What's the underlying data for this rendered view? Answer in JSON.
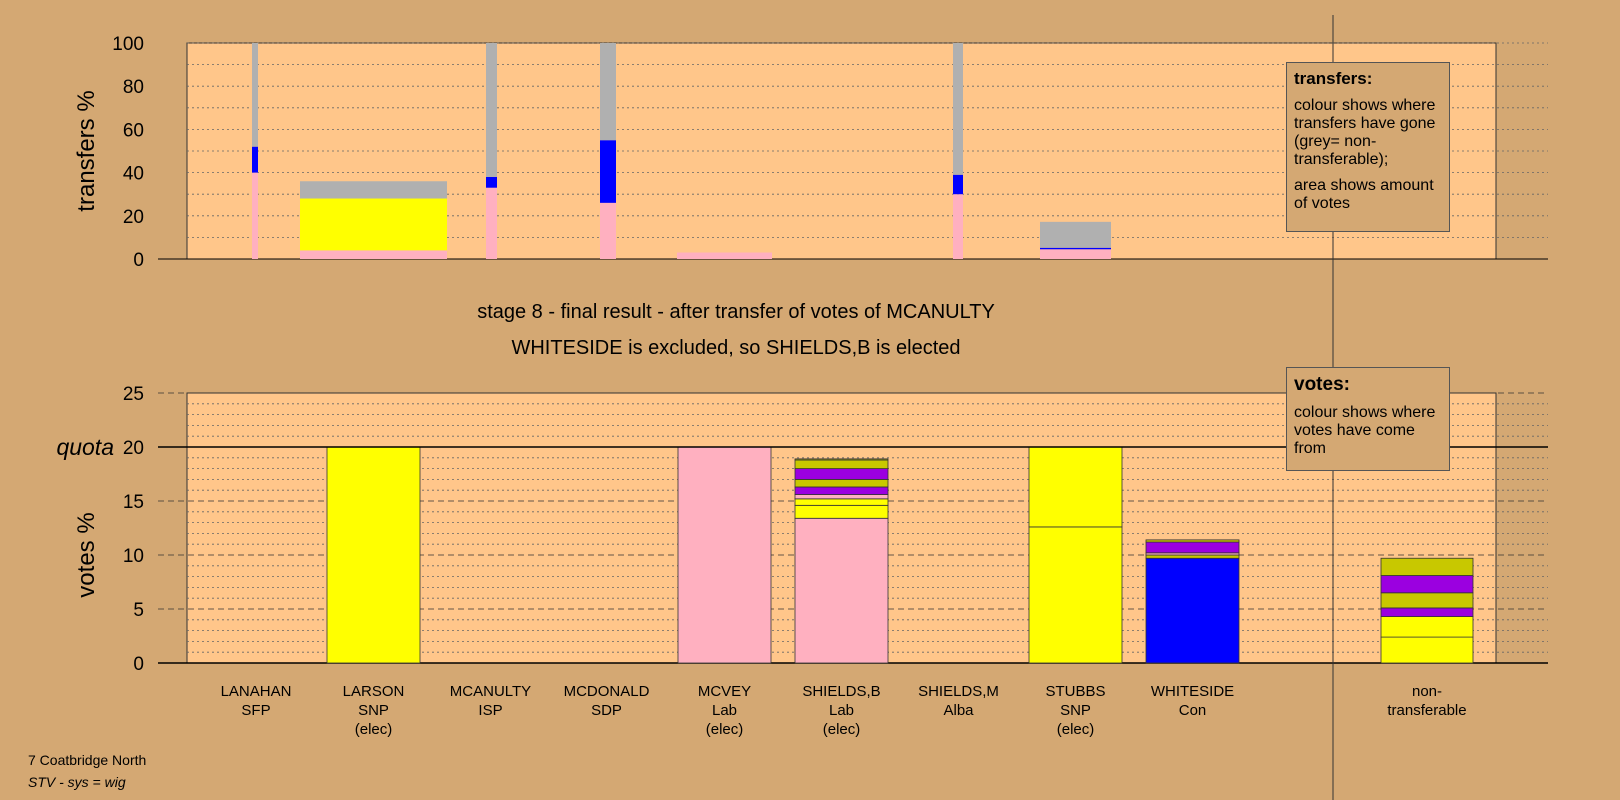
{
  "footer": {
    "constituency": "7 Coatbridge North",
    "system": "STV - sys = wig"
  },
  "chart_data": [
    {
      "type": "bar",
      "stacked": true,
      "ylabel": "transfers %",
      "ylim": [
        0,
        100
      ],
      "yticks": [
        0,
        20,
        40,
        60,
        80,
        100
      ],
      "grid": "dotted",
      "legend": {
        "placement": "top-right",
        "title": "transfers:",
        "lines": [
          "colour shows where transfers have gone (grey= non-transferable);",
          "area shows amount of votes"
        ]
      },
      "series_colors": {
        "pink": "#FFB0C0",
        "yellow": "#FFFF00",
        "blue": "#0000FF",
        "grey": "#B0B0B0"
      },
      "bars": [
        {
          "candidate": "LANAHAN",
          "segments": [
            {
              "color": "pink",
              "value": 40
            },
            {
              "color": "blue",
              "value": 12
            },
            {
              "color": "grey",
              "value": 48
            }
          ]
        },
        {
          "candidate": "LARSON",
          "segments": [
            {
              "color": "pink",
              "value": 4
            },
            {
              "color": "yellow",
              "value": 24
            },
            {
              "color": "grey",
              "value": 8
            }
          ]
        },
        {
          "candidate": "MCANULTY",
          "segments": [
            {
              "color": "pink",
              "value": 33
            },
            {
              "color": "blue",
              "value": 5
            },
            {
              "color": "grey",
              "value": 62
            }
          ]
        },
        {
          "candidate": "MCDONALD",
          "segments": [
            {
              "color": "pink",
              "value": 26
            },
            {
              "color": "blue",
              "value": 29
            },
            {
              "color": "grey",
              "value": 45
            }
          ]
        },
        {
          "candidate": "MCVEY",
          "segments": [
            {
              "color": "pink",
              "value": 3
            }
          ]
        },
        {
          "candidate": "SHIELDS,M",
          "segments": [
            {
              "color": "pink",
              "value": 30
            },
            {
              "color": "blue",
              "value": 9
            },
            {
              "color": "grey",
              "value": 61
            }
          ]
        },
        {
          "candidate": "STUBBS",
          "segments": [
            {
              "color": "pink",
              "value": 4.5
            },
            {
              "color": "blue",
              "value": 0.7
            },
            {
              "color": "grey",
              "value": 12
            }
          ]
        }
      ]
    },
    {
      "type": "bar",
      "stacked": true,
      "title": "stage 8 - final result - after transfer of votes of MCANULTY",
      "subtitle": "WHITESIDE is excluded, so SHIELDS,B is elected",
      "ylabel": "votes %",
      "ylim": [
        0,
        25
      ],
      "yticks": [
        0,
        5,
        10,
        15,
        20,
        25
      ],
      "quota": 20,
      "quota_label": "quota",
      "grid": "dashed",
      "legend": {
        "placement": "top-right",
        "title": "votes:",
        "lines": [
          "colour shows where votes have come from"
        ]
      },
      "series_colors": {
        "pink": "#FFB0C0",
        "yellow": "#FFFF00",
        "blue": "#0000FF",
        "purple": "#9B00E0",
        "olive": "#C8C800"
      },
      "bars": [
        {
          "candidate": "LANAHAN",
          "party": "SFP",
          "status": "",
          "segments": []
        },
        {
          "candidate": "LARSON",
          "party": "SNP",
          "status": "(elec)",
          "segments": [
            {
              "color": "yellow",
              "value": 20
            }
          ]
        },
        {
          "candidate": "MCANULTY",
          "party": "ISP",
          "status": "",
          "segments": []
        },
        {
          "candidate": "MCDONALD",
          "party": "SDP",
          "status": "",
          "segments": []
        },
        {
          "candidate": "MCVEY",
          "party": "Lab",
          "status": "(elec)",
          "segments": [
            {
              "color": "pink",
              "value": 20
            }
          ]
        },
        {
          "candidate": "SHIELDS,B",
          "party": "Lab",
          "status": "(elec)",
          "segments": [
            {
              "color": "pink",
              "value": 13.4
            },
            {
              "color": "yellow",
              "value": 1.2
            },
            {
              "color": "yellow",
              "value": 0.6
            },
            {
              "color": "pink",
              "value": 0.4
            },
            {
              "color": "purple",
              "value": 0.7
            },
            {
              "color": "olive",
              "value": 0.7
            },
            {
              "color": "purple",
              "value": 1.0
            },
            {
              "color": "olive",
              "value": 0.8
            },
            {
              "color": "olive",
              "value": 0.1
            }
          ]
        },
        {
          "candidate": "SHIELDS,M",
          "party": "Alba",
          "status": "",
          "segments": []
        },
        {
          "candidate": "STUBBS",
          "party": "SNP",
          "status": "(elec)",
          "segments": [
            {
              "color": "yellow",
              "value": 12.6
            },
            {
              "color": "yellow",
              "value": 7.4
            }
          ]
        },
        {
          "candidate": "WHITESIDE",
          "party": "Con",
          "status": "",
          "segments": [
            {
              "color": "blue",
              "value": 9.7
            },
            {
              "color": "olive",
              "value": 0.3
            },
            {
              "color": "pink",
              "value": 0.2
            },
            {
              "color": "purple",
              "value": 1.0
            },
            {
              "color": "olive",
              "value": 0.2
            }
          ]
        },
        {
          "candidate": "non-",
          "party": "transferable",
          "status": "",
          "nontransferable": true,
          "segments": [
            {
              "color": "yellow",
              "value": 2.4
            },
            {
              "color": "yellow",
              "value": 1.9
            },
            {
              "color": "purple",
              "value": 0.8
            },
            {
              "color": "olive",
              "value": 1.4
            },
            {
              "color": "purple",
              "value": 1.6
            },
            {
              "color": "olive",
              "value": 1.6
            }
          ]
        }
      ]
    }
  ]
}
